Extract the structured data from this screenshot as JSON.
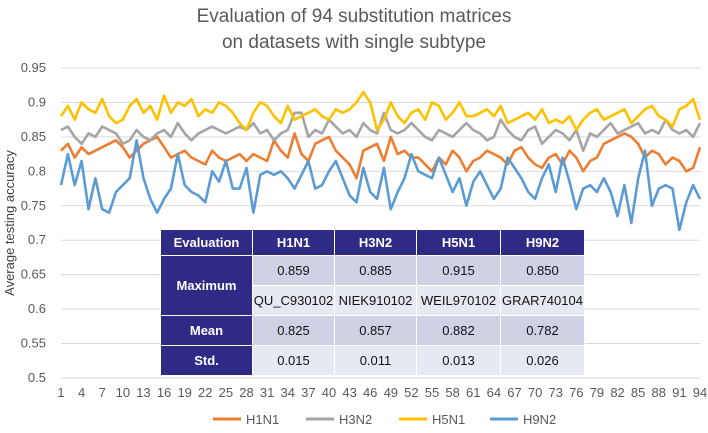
{
  "chart_data": {
    "type": "line",
    "title_line1": "Evaluation of 94 substitution matrices",
    "title_line2": "on datasets with single subtype",
    "ylabel": "Average testing accuracy",
    "xlabel": "",
    "ylim": [
      0.5,
      0.95
    ],
    "yticks": [
      "0.5",
      "0.55",
      "0.6",
      "0.65",
      "0.7",
      "0.75",
      "0.8",
      "0.85",
      "0.9",
      "0.95"
    ],
    "xticks": [
      1,
      4,
      7,
      10,
      13,
      16,
      19,
      22,
      25,
      28,
      31,
      34,
      37,
      40,
      43,
      46,
      49,
      52,
      55,
      58,
      61,
      64,
      67,
      70,
      73,
      76,
      79,
      82,
      85,
      88,
      91,
      94
    ],
    "grid": true,
    "legend_position": "bottom",
    "series": [
      {
        "name": "H1N1",
        "color": "#ed7d31",
        "values": [
          0.83,
          0.84,
          0.82,
          0.835,
          0.825,
          0.83,
          0.835,
          0.84,
          0.845,
          0.835,
          0.82,
          0.83,
          0.84,
          0.845,
          0.85,
          0.835,
          0.82,
          0.825,
          0.83,
          0.82,
          0.815,
          0.81,
          0.83,
          0.82,
          0.815,
          0.82,
          0.825,
          0.815,
          0.825,
          0.82,
          0.815,
          0.845,
          0.83,
          0.82,
          0.855,
          0.825,
          0.815,
          0.84,
          0.845,
          0.85,
          0.83,
          0.82,
          0.81,
          0.79,
          0.83,
          0.835,
          0.84,
          0.815,
          0.85,
          0.825,
          0.83,
          0.82,
          0.82,
          0.81,
          0.8,
          0.82,
          0.81,
          0.83,
          0.82,
          0.8,
          0.815,
          0.82,
          0.83,
          0.825,
          0.82,
          0.81,
          0.83,
          0.835,
          0.82,
          0.81,
          0.805,
          0.82,
          0.825,
          0.81,
          0.83,
          0.82,
          0.8,
          0.815,
          0.82,
          0.84,
          0.845,
          0.85,
          0.855,
          0.85,
          0.84,
          0.82,
          0.83,
          0.825,
          0.81,
          0.82,
          0.815,
          0.8,
          0.805,
          0.835
        ]
      },
      {
        "name": "H3N2",
        "color": "#a5a5a5",
        "values": [
          0.86,
          0.865,
          0.85,
          0.84,
          0.855,
          0.85,
          0.865,
          0.86,
          0.855,
          0.84,
          0.845,
          0.86,
          0.85,
          0.845,
          0.855,
          0.86,
          0.85,
          0.87,
          0.855,
          0.845,
          0.855,
          0.86,
          0.865,
          0.86,
          0.855,
          0.86,
          0.865,
          0.86,
          0.87,
          0.855,
          0.86,
          0.845,
          0.855,
          0.86,
          0.885,
          0.885,
          0.85,
          0.86,
          0.855,
          0.875,
          0.865,
          0.855,
          0.86,
          0.85,
          0.87,
          0.86,
          0.855,
          0.885,
          0.86,
          0.855,
          0.86,
          0.87,
          0.86,
          0.85,
          0.845,
          0.86,
          0.855,
          0.85,
          0.86,
          0.87,
          0.86,
          0.855,
          0.845,
          0.85,
          0.875,
          0.86,
          0.85,
          0.845,
          0.86,
          0.865,
          0.84,
          0.85,
          0.86,
          0.855,
          0.845,
          0.86,
          0.83,
          0.855,
          0.85,
          0.86,
          0.87,
          0.855,
          0.86,
          0.865,
          0.87,
          0.855,
          0.86,
          0.855,
          0.875,
          0.86,
          0.855,
          0.86,
          0.85,
          0.87
        ]
      },
      {
        "name": "H5N1",
        "color": "#ffc000",
        "values": [
          0.88,
          0.895,
          0.875,
          0.9,
          0.89,
          0.885,
          0.905,
          0.88,
          0.87,
          0.875,
          0.895,
          0.905,
          0.885,
          0.895,
          0.875,
          0.91,
          0.885,
          0.9,
          0.895,
          0.905,
          0.88,
          0.89,
          0.885,
          0.9,
          0.895,
          0.885,
          0.87,
          0.86,
          0.885,
          0.9,
          0.895,
          0.88,
          0.87,
          0.895,
          0.875,
          0.88,
          0.885,
          0.89,
          0.88,
          0.875,
          0.89,
          0.885,
          0.89,
          0.9,
          0.915,
          0.9,
          0.86,
          0.875,
          0.9,
          0.88,
          0.87,
          0.885,
          0.89,
          0.875,
          0.9,
          0.895,
          0.875,
          0.885,
          0.9,
          0.88,
          0.88,
          0.885,
          0.89,
          0.88,
          0.895,
          0.87,
          0.875,
          0.88,
          0.885,
          0.875,
          0.89,
          0.87,
          0.875,
          0.87,
          0.88,
          0.86,
          0.875,
          0.885,
          0.89,
          0.875,
          0.88,
          0.885,
          0.89,
          0.87,
          0.88,
          0.89,
          0.895,
          0.88,
          0.875,
          0.865,
          0.89,
          0.895,
          0.905,
          0.875
        ]
      },
      {
        "name": "H9N2",
        "color": "#5b9bd5",
        "values": [
          0.78,
          0.825,
          0.78,
          0.815,
          0.745,
          0.79,
          0.745,
          0.74,
          0.77,
          0.78,
          0.79,
          0.845,
          0.79,
          0.76,
          0.74,
          0.76,
          0.775,
          0.825,
          0.78,
          0.77,
          0.765,
          0.755,
          0.8,
          0.785,
          0.815,
          0.775,
          0.775,
          0.805,
          0.74,
          0.795,
          0.8,
          0.795,
          0.8,
          0.79,
          0.775,
          0.795,
          0.815,
          0.775,
          0.78,
          0.8,
          0.815,
          0.79,
          0.765,
          0.755,
          0.805,
          0.77,
          0.76,
          0.805,
          0.745,
          0.77,
          0.79,
          0.825,
          0.8,
          0.795,
          0.79,
          0.82,
          0.795,
          0.77,
          0.79,
          0.75,
          0.785,
          0.8,
          0.78,
          0.76,
          0.775,
          0.82,
          0.805,
          0.79,
          0.77,
          0.76,
          0.79,
          0.81,
          0.77,
          0.82,
          0.785,
          0.745,
          0.775,
          0.78,
          0.77,
          0.79,
          0.77,
          0.735,
          0.78,
          0.725,
          0.79,
          0.83,
          0.75,
          0.775,
          0.78,
          0.775,
          0.715,
          0.755,
          0.78,
          0.76
        ]
      }
    ]
  },
  "table": {
    "headers": [
      "Evaluation",
      "H1N1",
      "H3N2",
      "H5N1",
      "H9N2"
    ],
    "maximum_label": "Maximum",
    "maximum_values": [
      "0.859",
      "0.885",
      "0.915",
      "0.850"
    ],
    "maximum_matrices": [
      "QU_C930102",
      "NIEK910102",
      "WEIL970102",
      "GRAR740104"
    ],
    "mean_label": "Mean",
    "mean_values": [
      "0.825",
      "0.857",
      "0.882",
      "0.782"
    ],
    "std_label": "Std.",
    "std_values": [
      "0.015",
      "0.011",
      "0.013",
      "0.026"
    ]
  }
}
